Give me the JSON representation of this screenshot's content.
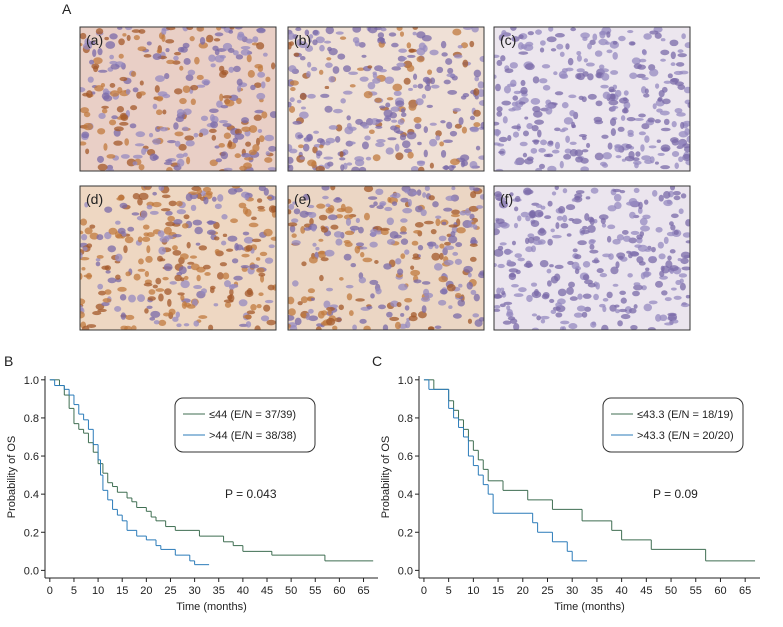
{
  "panel_a": {
    "label": "A",
    "images": [
      {
        "label": "(a)"
      },
      {
        "label": "(b)"
      },
      {
        "label": "(c)"
      },
      {
        "label": "(d)"
      },
      {
        "label": "(e)"
      },
      {
        "label": "(f)"
      }
    ]
  },
  "chart_data": [
    {
      "type": "line",
      "panel_label": "B",
      "x_label": "Time (months)",
      "y_label": "Probability of OS",
      "annotation": "P = 0.043",
      "xlim": [
        -1,
        68
      ],
      "ylim": [
        -0.04,
        1.02
      ],
      "xticks": [
        0,
        5,
        10,
        15,
        20,
        25,
        30,
        35,
        40,
        45,
        50,
        55,
        60,
        65
      ],
      "yticks": [
        {
          "value": 0,
          "label": "0.0"
        },
        {
          "value": 0.2,
          "label": "0.2"
        },
        {
          "value": 0.4,
          "label": "0.4"
        },
        {
          "value": 0.6,
          "label": "0.6"
        },
        {
          "value": 0.8,
          "label": "0.8"
        },
        {
          "value": 1,
          "label": "1.0"
        }
      ],
      "series": [
        {
          "name": "≤44 (E/N = 37/39)",
          "color": "#3f6e52",
          "x": [
            0,
            2,
            3,
            4,
            5,
            6,
            7,
            8,
            9,
            10,
            11,
            12,
            13,
            14,
            16,
            17,
            18,
            20,
            21,
            22,
            24,
            26,
            31,
            36,
            38,
            40,
            46,
            57,
            67
          ],
          "values": [
            1.0,
            0.97,
            0.92,
            0.85,
            0.77,
            0.74,
            0.72,
            0.67,
            0.62,
            0.56,
            0.51,
            0.46,
            0.44,
            0.41,
            0.38,
            0.36,
            0.33,
            0.31,
            0.28,
            0.26,
            0.23,
            0.21,
            0.18,
            0.15,
            0.13,
            0.1,
            0.08,
            0.05,
            0.05
          ]
        },
        {
          "name": ">44 (E/N = 38/38)",
          "color": "#2b7bb9",
          "x": [
            0,
            1,
            3,
            4,
            5,
            6,
            7,
            8,
            9,
            10,
            10.5,
            11,
            12,
            13,
            14,
            15,
            16,
            18,
            20,
            22,
            23,
            26,
            29,
            30,
            33
          ],
          "values": [
            1.0,
            0.97,
            0.95,
            0.92,
            0.87,
            0.82,
            0.79,
            0.74,
            0.66,
            0.58,
            0.5,
            0.42,
            0.37,
            0.32,
            0.29,
            0.26,
            0.21,
            0.18,
            0.16,
            0.13,
            0.11,
            0.08,
            0.05,
            0.03,
            0.03
          ]
        }
      ]
    },
    {
      "type": "line",
      "panel_label": "C",
      "x_label": "Time (months)",
      "y_label": "Probability of OS",
      "annotation": "P = 0.09",
      "xlim": [
        -1,
        68
      ],
      "ylim": [
        -0.04,
        1.02
      ],
      "xticks": [
        0,
        5,
        10,
        15,
        20,
        25,
        30,
        35,
        40,
        45,
        50,
        55,
        60,
        65
      ],
      "yticks": [
        {
          "value": 0,
          "label": "0.0"
        },
        {
          "value": 0.2,
          "label": "0.2"
        },
        {
          "value": 0.4,
          "label": "0.4"
        },
        {
          "value": 0.6,
          "label": "0.6"
        },
        {
          "value": 0.8,
          "label": "0.8"
        },
        {
          "value": 1,
          "label": "1.0"
        }
      ],
      "series": [
        {
          "name": "≤43.3 (E/N = 18/19)",
          "color": "#3f6e52",
          "x": [
            0,
            2,
            5,
            6,
            7,
            8,
            9,
            10,
            11,
            12,
            13,
            16,
            21,
            26,
            32,
            38,
            40,
            46,
            57,
            67
          ],
          "values": [
            1.0,
            0.95,
            0.89,
            0.84,
            0.79,
            0.74,
            0.68,
            0.63,
            0.58,
            0.53,
            0.47,
            0.42,
            0.37,
            0.32,
            0.26,
            0.21,
            0.16,
            0.11,
            0.05,
            0.05
          ]
        },
        {
          "name": ">43.3 (E/N = 20/20)",
          "color": "#2b7bb9",
          "x": [
            0,
            1,
            5,
            6,
            7,
            8,
            9,
            10,
            11,
            12,
            13,
            14,
            22,
            23,
            26,
            29,
            30,
            33
          ],
          "values": [
            1.0,
            0.95,
            0.85,
            0.8,
            0.75,
            0.7,
            0.6,
            0.55,
            0.5,
            0.45,
            0.4,
            0.3,
            0.25,
            0.2,
            0.15,
            0.1,
            0.05,
            0.05
          ]
        }
      ]
    }
  ]
}
